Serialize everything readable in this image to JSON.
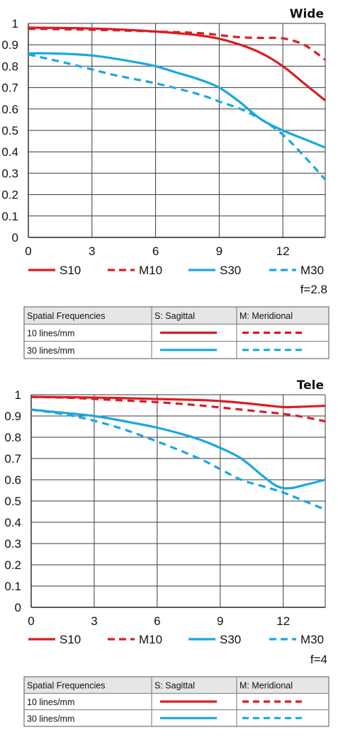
{
  "colors": {
    "sagittal": "#d81e25",
    "meridional": "#d81e25",
    "s30": "#1aa7e0",
    "m30": "#1aa7e0"
  },
  "chart_data": [
    {
      "type": "line",
      "title": "Wide",
      "xlabel": "",
      "ylabel": "",
      "xlim": [
        0,
        14
      ],
      "ylim": [
        0,
        1
      ],
      "x_ticks": [
        "0",
        "3",
        "6",
        "9",
        "12"
      ],
      "y_ticks": [
        "0",
        "0.1",
        "0.2",
        "0.3",
        "0.4",
        "0.5",
        "0.6",
        "0.7",
        "0.8",
        "0.9",
        "1"
      ],
      "grid": true,
      "legend_position": "bottom",
      "series": [
        {
          "name": "S10",
          "color": "#d81e25",
          "dash": false,
          "x": [
            0,
            2,
            4,
            6,
            8,
            9,
            10,
            11,
            12,
            13,
            14
          ],
          "y": [
            0.98,
            0.978,
            0.973,
            0.962,
            0.945,
            0.928,
            0.9,
            0.86,
            0.8,
            0.72,
            0.64
          ]
        },
        {
          "name": "M10",
          "color": "#d81e25",
          "dash": true,
          "x": [
            0,
            2,
            4,
            6,
            8,
            9,
            10,
            11,
            12,
            13,
            14
          ],
          "y": [
            0.975,
            0.972,
            0.968,
            0.962,
            0.955,
            0.945,
            0.935,
            0.932,
            0.93,
            0.9,
            0.83
          ]
        },
        {
          "name": "S30",
          "color": "#1aa7e0",
          "dash": false,
          "x": [
            0,
            1,
            3,
            5,
            6,
            7,
            8,
            9,
            10,
            11,
            12,
            13,
            14
          ],
          "y": [
            0.86,
            0.86,
            0.85,
            0.82,
            0.8,
            0.77,
            0.74,
            0.7,
            0.63,
            0.55,
            0.5,
            0.46,
            0.42
          ]
        },
        {
          "name": "M30",
          "color": "#1aa7e0",
          "dash": true,
          "x": [
            0,
            2,
            4,
            6,
            8,
            9,
            10,
            11,
            12,
            13,
            14
          ],
          "y": [
            0.855,
            0.81,
            0.76,
            0.72,
            0.67,
            0.635,
            0.6,
            0.55,
            0.48,
            0.38,
            0.27
          ]
        }
      ]
    },
    {
      "type": "line",
      "title": "Tele",
      "xlabel": "",
      "ylabel": "",
      "xlim": [
        0,
        14
      ],
      "ylim": [
        0,
        1
      ],
      "x_ticks": [
        "0",
        "3",
        "6",
        "9",
        "12"
      ],
      "y_ticks": [
        "0",
        "0.1",
        "0.2",
        "0.3",
        "0.4",
        "0.5",
        "0.6",
        "0.7",
        "0.8",
        "0.9",
        "1"
      ],
      "grid": true,
      "legend_position": "bottom",
      "series": [
        {
          "name": "S10",
          "color": "#d81e25",
          "dash": false,
          "x": [
            0,
            2,
            4,
            6,
            8,
            9,
            10,
            11,
            12,
            13,
            14
          ],
          "y": [
            0.99,
            0.988,
            0.985,
            0.98,
            0.975,
            0.97,
            0.962,
            0.952,
            0.942,
            0.944,
            0.948
          ]
        },
        {
          "name": "M10",
          "color": "#d81e25",
          "dash": true,
          "x": [
            0,
            2,
            4,
            6,
            8,
            9,
            10,
            11,
            12,
            13,
            14
          ],
          "y": [
            0.99,
            0.985,
            0.975,
            0.965,
            0.95,
            0.94,
            0.93,
            0.92,
            0.91,
            0.895,
            0.875
          ]
        },
        {
          "name": "S30",
          "color": "#1aa7e0",
          "dash": false,
          "x": [
            0,
            1,
            3,
            5,
            6,
            7,
            8,
            9,
            10,
            11,
            11.7,
            12.3,
            13,
            14
          ],
          "y": [
            0.93,
            0.92,
            0.9,
            0.865,
            0.845,
            0.82,
            0.79,
            0.75,
            0.7,
            0.62,
            0.57,
            0.56,
            0.575,
            0.6
          ]
        },
        {
          "name": "M30",
          "color": "#1aa7e0",
          "dash": true,
          "x": [
            0,
            2,
            4,
            6,
            8,
            9,
            10,
            11,
            12,
            13,
            14
          ],
          "y": [
            0.93,
            0.9,
            0.85,
            0.78,
            0.7,
            0.65,
            0.6,
            0.57,
            0.54,
            0.5,
            0.46
          ]
        }
      ]
    }
  ],
  "charts": [
    {
      "f_label": "f=2.8",
      "table": {
        "headers": [
          "Spatial Frequencies",
          "S: Sagittal",
          "M: Meridional"
        ],
        "rows": [
          "10 lines/mm",
          "30 lines/mm"
        ]
      }
    },
    {
      "f_label": "f=4",
      "table": {
        "headers": [
          "Spatial Frequencies",
          "S: Sagittal",
          "M: Meridional"
        ],
        "rows": [
          "10 lines/mm",
          "30 lines/mm"
        ]
      }
    }
  ]
}
